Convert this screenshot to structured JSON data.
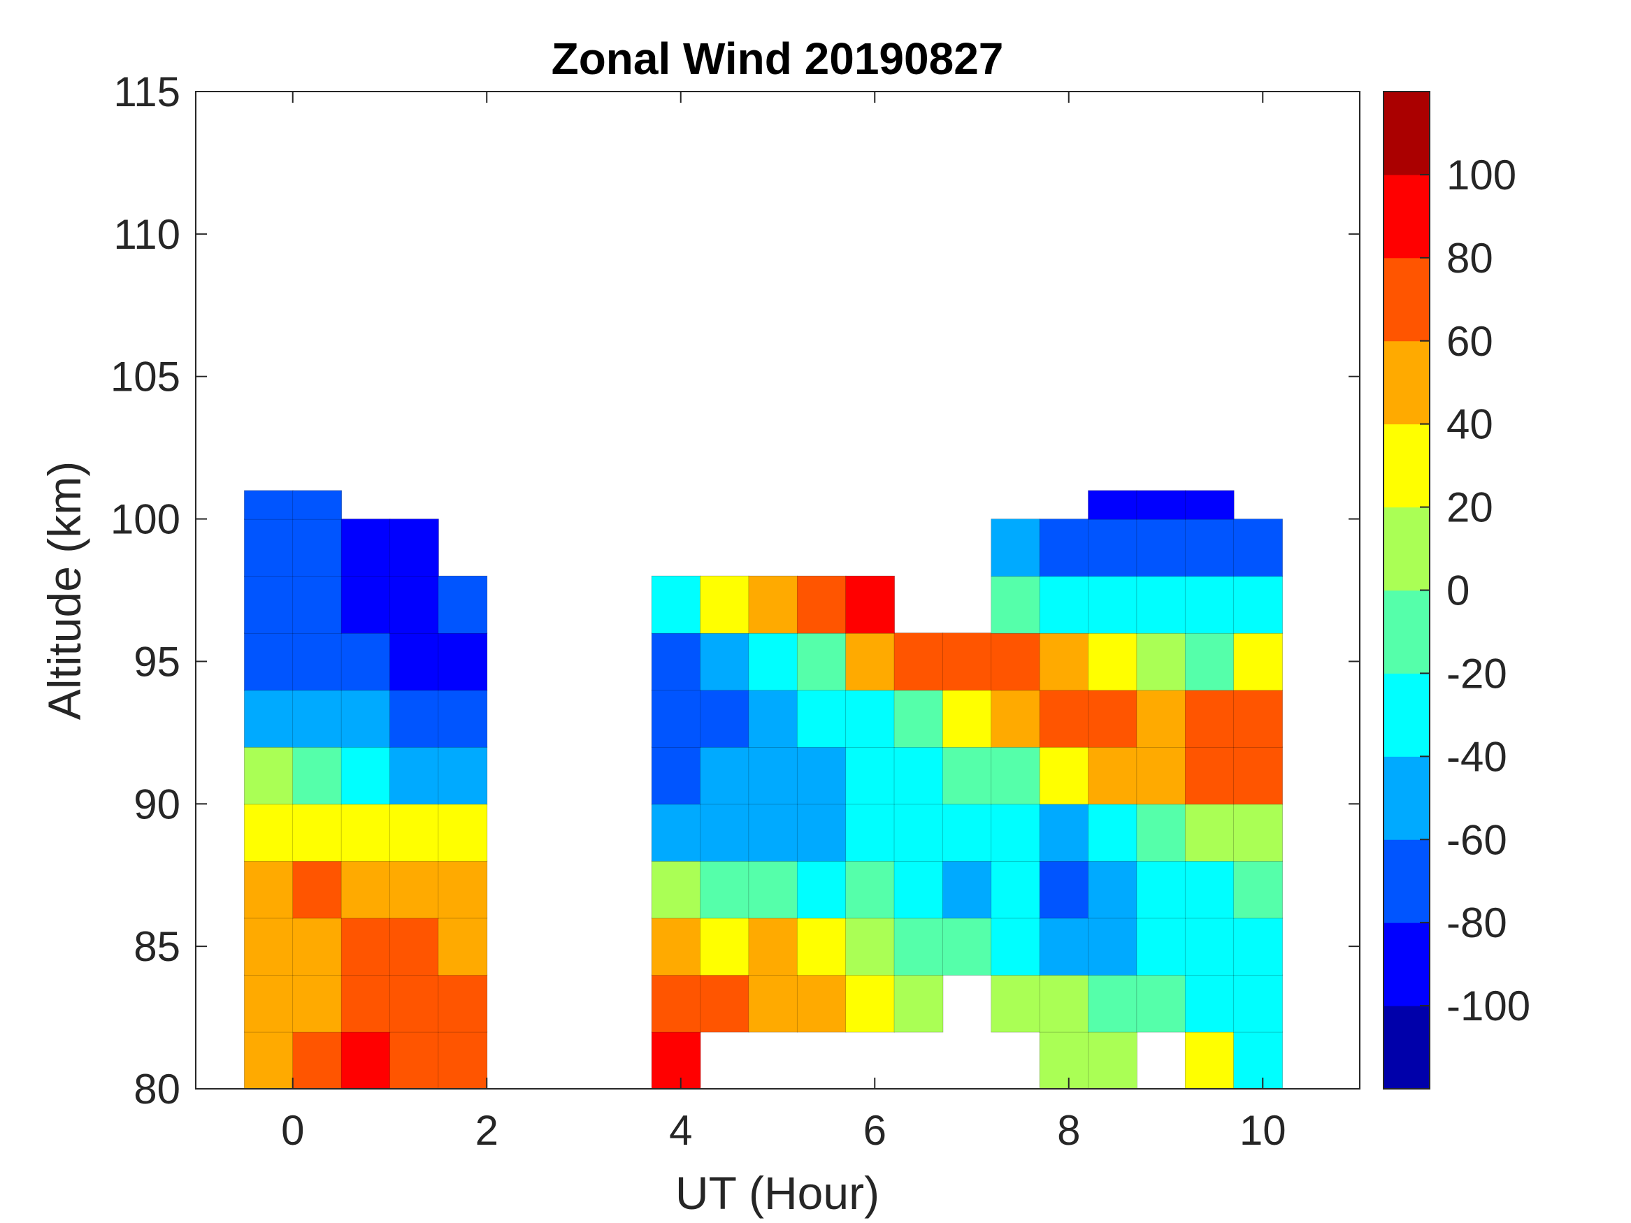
{
  "chart_data": {
    "type": "heatmap",
    "subtype": "filled-contour",
    "title": "Zonal Wind 20190827",
    "xlabel": "UT (Hour)",
    "ylabel": "Altitude (km)",
    "xlim": [
      -1,
      11
    ],
    "ylim": [
      80,
      115
    ],
    "xticks": [
      0,
      2,
      4,
      6,
      8,
      10
    ],
    "yticks": [
      80,
      85,
      90,
      95,
      100,
      105,
      110,
      115
    ],
    "colorbar": {
      "range": [
        -120,
        120
      ],
      "ticks": [
        -100,
        -80,
        -60,
        -40,
        -20,
        0,
        20,
        40,
        60,
        80,
        100
      ],
      "levels": [
        -120,
        -100,
        -80,
        -60,
        -40,
        -20,
        0,
        20,
        40,
        60,
        80,
        100,
        120
      ],
      "colors": [
        "#0000aa",
        "#0000ff",
        "#0055ff",
        "#00aaff",
        "#00ffff",
        "#55ffaa",
        "#aaff55",
        "#ffff00",
        "#ffaa00",
        "#ff5500",
        "#ff0000",
        "#aa0000"
      ]
    },
    "x_edges": [
      -0.5,
      0,
      0.5,
      1,
      1.5,
      2.0,
      3.7,
      4.2,
      4.7,
      5.2,
      5.7,
      6.2,
      6.7,
      7.2,
      7.7,
      8.2,
      8.7,
      9.2,
      9.7,
      10.2
    ],
    "y_edges": [
      80,
      82,
      84,
      86,
      88,
      90,
      92,
      94,
      96,
      98,
      100,
      101
    ],
    "values": [
      [
        50,
        60,
        80,
        60,
        70,
        null,
        80,
        null,
        null,
        null,
        null,
        null,
        null,
        null,
        10,
        0,
        null,
        20,
        -40
      ],
      [
        40,
        50,
        70,
        70,
        60,
        null,
        70,
        60,
        50,
        50,
        30,
        10,
        null,
        10,
        0,
        -20,
        -20,
        -30,
        -30
      ],
      [
        40,
        50,
        60,
        60,
        50,
        null,
        40,
        30,
        40,
        30,
        10,
        -10,
        -10,
        -30,
        -60,
        -50,
        -40,
        -40,
        -30
      ],
      [
        50,
        60,
        50,
        50,
        40,
        null,
        0,
        -10,
        -20,
        -30,
        -20,
        -40,
        -50,
        -40,
        -70,
        -60,
        -40,
        -30,
        -20
      ],
      [
        30,
        30,
        30,
        20,
        20,
        null,
        -50,
        -50,
        -50,
        -60,
        -40,
        -30,
        -30,
        -40,
        -50,
        -40,
        -20,
        0,
        10
      ],
      [
        0,
        -20,
        -40,
        -50,
        -50,
        null,
        -70,
        -60,
        -60,
        -50,
        -40,
        -30,
        -20,
        -20,
        20,
        40,
        50,
        70,
        70
      ],
      [
        -50,
        -50,
        -60,
        -70,
        -80,
        null,
        -80,
        -70,
        -60,
        -40,
        -30,
        -10,
        30,
        50,
        60,
        60,
        40,
        60,
        60
      ],
      [
        -70,
        -70,
        -80,
        -90,
        -85,
        null,
        -70,
        -60,
        -40,
        -20,
        40,
        70,
        70,
        60,
        50,
        30,
        0,
        -10,
        20
      ],
      [
        -80,
        -80,
        -90,
        -90,
        -80,
        null,
        -40,
        20,
        50,
        70,
        80,
        null,
        null,
        -20,
        -40,
        -30,
        -40,
        -40,
        -40
      ],
      [
        -70,
        -80,
        -90,
        -90,
        null,
        null,
        null,
        null,
        null,
        null,
        null,
        null,
        null,
        -60,
        -70,
        -80,
        -80,
        -80,
        -70
      ],
      [
        -70,
        -75,
        null,
        null,
        null,
        null,
        null,
        null,
        null,
        null,
        null,
        null,
        null,
        null,
        null,
        -85,
        -90,
        -90,
        null
      ]
    ]
  }
}
